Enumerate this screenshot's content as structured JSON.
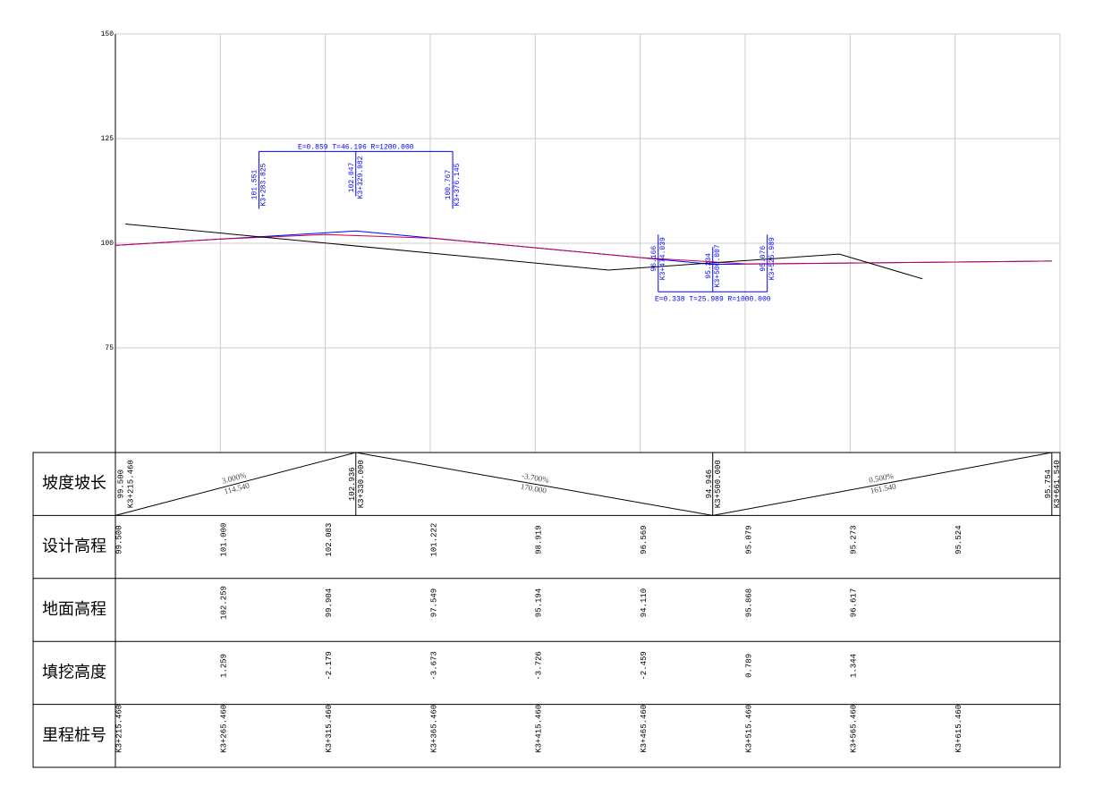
{
  "chart_data": {
    "type": "line",
    "xlim": [
      215.46,
      665.46
    ],
    "ylim": [
      50,
      150
    ],
    "yticks": [
      75,
      100,
      125,
      150
    ],
    "grid": true,
    "series": [
      {
        "color": "#0000ff",
        "x": [
          215.46,
          330,
          500,
          661.54
        ],
        "values": [
          99.5,
          102.936,
          94.946,
          95.754
        ]
      },
      {
        "color": "#c8004e",
        "x": [
          215.46,
          265.46,
          315.46,
          365.46,
          415.46,
          465.46,
          515.46,
          565.46,
          615.46,
          661.54
        ],
        "values": [
          99.5,
          101,
          102.083,
          101.222,
          98.919,
          96.569,
          95.079,
          95.273,
          95.524,
          95.754
        ]
      },
      {
        "color": "#000000",
        "x": [
          220.2,
          450.3,
          560.3,
          599.9
        ],
        "values": [
          104.6,
          93.6,
          97.4,
          91.5
        ]
      }
    ],
    "annotations": [
      {
        "label": "E=0.859 T=46.196 R=1200.000",
        "points": [
          {
            "station": 283.825,
            "station_label": "K3+283.825",
            "elevation": 101.551
          },
          {
            "station": 329.982,
            "station_label": "K3+329.982",
            "elevation": 102.047
          },
          {
            "station": 376.145,
            "station_label": "K3+376.145",
            "elevation": 100.767
          }
        ]
      },
      {
        "label": "E=0.338 T=25.989 R=1000.000",
        "points": [
          {
            "station": 474.039,
            "station_label": "K3+474.039",
            "elevation": 96.166
          },
          {
            "station": 500.007,
            "station_label": "K3+500.007",
            "elevation": 95.234
          },
          {
            "station": 525.989,
            "station_label": "K3+525.989",
            "elevation": 95.076
          }
        ]
      }
    ]
  },
  "table": {
    "stations": [
      215.46,
      265.46,
      315.46,
      365.46,
      415.46,
      465.46,
      515.46,
      565.46,
      615.46
    ],
    "grade_row": {
      "label": "坡度坡长",
      "points": [
        {
          "station": 215.46,
          "station_label": "K3+215.460",
          "elevation": {
            "value": 99.5,
            "label": "99.500"
          }
        },
        {
          "station": 330,
          "station_label": "K3+330.000",
          "elevation": {
            "value": 102.936,
            "label": "102.936"
          }
        },
        {
          "station": 500,
          "station_label": "K3+500.000",
          "elevation": {
            "value": 94.946,
            "label": "94.946"
          }
        },
        {
          "station": 661.54,
          "station_label": "K3+661.540",
          "elevation": {
            "value": 95.754,
            "label": "95.754"
          }
        }
      ],
      "segments": [
        {
          "grade": "3.000%",
          "length": "114.540"
        },
        {
          "grade": "-3.700%",
          "length": "170.000"
        },
        {
          "grade": "0.500%",
          "length": "161.540"
        }
      ]
    },
    "rows": [
      {
        "label": "设计高程",
        "values": [
          "99.500",
          "101.000",
          "102.083",
          "101.222",
          "98.919",
          "96.569",
          "95.079",
          "95.273",
          "95.524"
        ]
      },
      {
        "label": "地面高程",
        "values": [
          null,
          "102.259",
          "99.904",
          "97.549",
          "95.194",
          "94.110",
          "95.868",
          "96.617",
          null
        ]
      },
      {
        "label": "填挖高度",
        "values": [
          null,
          "1.259",
          "-2.179",
          "-3.673",
          "-3.726",
          "-2.459",
          "0.789",
          "1.344",
          null
        ]
      },
      {
        "label": "里程桩号",
        "values": [
          "K3+215.460",
          "K3+265.460",
          "K3+315.460",
          "K3+365.460",
          "K3+415.460",
          "K3+465.460",
          "K3+515.460",
          "K3+565.460",
          "K3+615.460"
        ]
      }
    ]
  }
}
